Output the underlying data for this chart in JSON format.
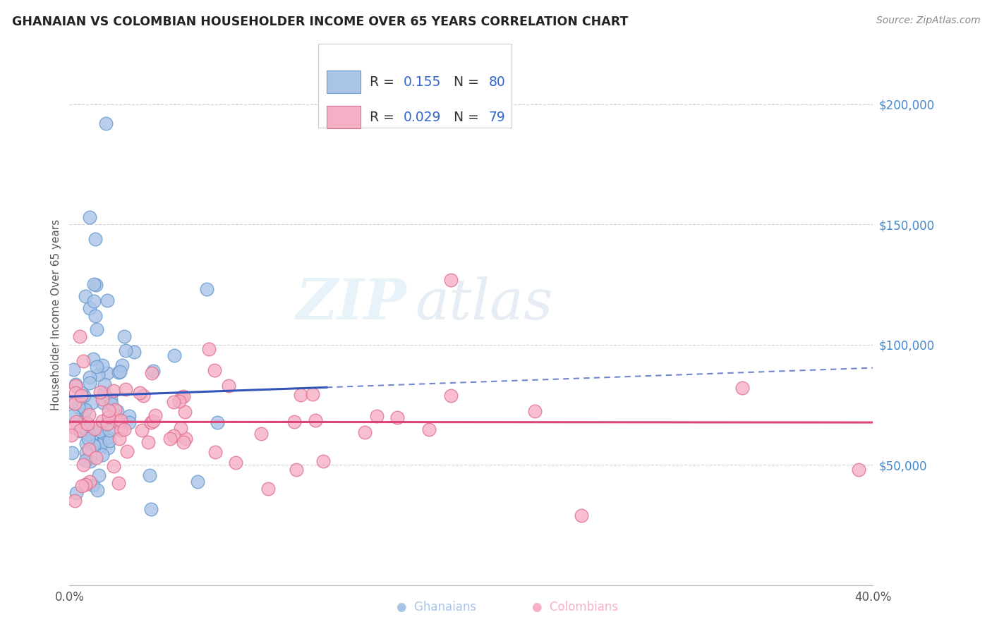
{
  "title": "GHANAIAN VS COLOMBIAN HOUSEHOLDER INCOME OVER 65 YEARS CORRELATION CHART",
  "source": "Source: ZipAtlas.com",
  "ylabel": "Householder Income Over 65 years",
  "y_ticks": [
    50000,
    100000,
    150000,
    200000
  ],
  "y_tick_labels": [
    "$50,000",
    "$100,000",
    "$150,000",
    "$200,000"
  ],
  "y_min": 0,
  "y_max": 225000,
  "x_min": 0.0,
  "x_max": 0.4,
  "watermark_zip": "ZIP",
  "watermark_atlas": "atlas",
  "blue_color": "#aac4e8",
  "blue_edge_color": "#6699cc",
  "pink_color": "#f5b0c5",
  "pink_edge_color": "#e07090",
  "blue_line_color": "#3355bb",
  "pink_line_color": "#dd4477",
  "blue_r": "0.155",
  "blue_n": "80",
  "pink_r": "0.029",
  "pink_n": "79",
  "value_color": "#3366cc",
  "label_color": "#333333",
  "ytick_color": "#4488cc",
  "xtick_color": "#555555",
  "grid_color": "#cccccc",
  "source_color": "#888888"
}
